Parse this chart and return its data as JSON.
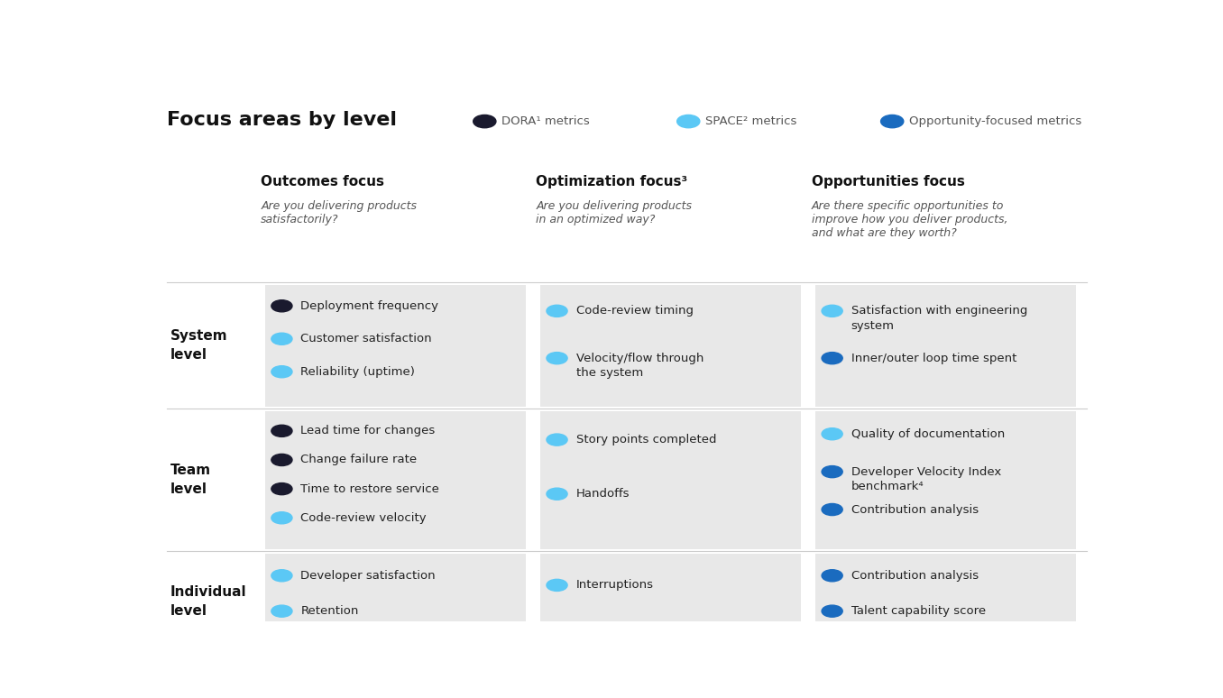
{
  "title": "Focus areas by level",
  "bg_color": "#ffffff",
  "cell_bg_color": "#e8e8e8",
  "legend": [
    {
      "label": "DORA¹ metrics",
      "color": "#1a1a2e"
    },
    {
      "label": "SPACE² metrics",
      "color": "#5bc8f5"
    },
    {
      "label": "Opportunity-focused metrics",
      "color": "#1a6bbf"
    }
  ],
  "columns": [
    {
      "header": "Outcomes focus",
      "subheader": "Are you delivering products\nsatisfactorily?"
    },
    {
      "header": "Optimization focus³",
      "subheader": "Are you delivering products\nin an optimized way?"
    },
    {
      "header": "Opportunities focus",
      "subheader": "Are there specific opportunities to\nimprove how you deliver products,\nand what are they worth?"
    }
  ],
  "rows": [
    {
      "label": "System\nlevel",
      "cells": [
        [
          {
            "color": "#1a1a2e",
            "text": "Deployment frequency"
          },
          {
            "color": "#5bc8f5",
            "text": "Customer satisfaction"
          },
          {
            "color": "#5bc8f5",
            "text": "Reliability (uptime)"
          }
        ],
        [
          {
            "color": "#5bc8f5",
            "text": "Code-review timing"
          },
          {
            "color": "#5bc8f5",
            "text": "Velocity/flow through\nthe system"
          }
        ],
        [
          {
            "color": "#5bc8f5",
            "text": "Satisfaction with engineering\nsystem"
          },
          {
            "color": "#1a6bbf",
            "text": "Inner/outer loop time spent"
          }
        ]
      ]
    },
    {
      "label": "Team\nlevel",
      "cells": [
        [
          {
            "color": "#1a1a2e",
            "text": "Lead time for changes"
          },
          {
            "color": "#1a1a2e",
            "text": "Change failure rate"
          },
          {
            "color": "#1a1a2e",
            "text": "Time to restore service"
          },
          {
            "color": "#5bc8f5",
            "text": "Code-review velocity"
          }
        ],
        [
          {
            "color": "#5bc8f5",
            "text": "Story points completed"
          },
          {
            "color": "#5bc8f5",
            "text": "Handoffs"
          }
        ],
        [
          {
            "color": "#5bc8f5",
            "text": "Quality of documentation"
          },
          {
            "color": "#1a6bbf",
            "text": "Developer Velocity Index\nbenchmark⁴"
          },
          {
            "color": "#1a6bbf",
            "text": "Contribution analysis"
          }
        ]
      ]
    },
    {
      "label": "Individual\nlevel",
      "cells": [
        [
          {
            "color": "#5bc8f5",
            "text": "Developer satisfaction"
          },
          {
            "color": "#5bc8f5",
            "text": "Retention"
          }
        ],
        [
          {
            "color": "#5bc8f5",
            "text": "Interruptions"
          }
        ],
        [
          {
            "color": "#1a6bbf",
            "text": "Contribution analysis"
          },
          {
            "color": "#1a6bbf",
            "text": "Talent capability score"
          }
        ]
      ]
    }
  ]
}
